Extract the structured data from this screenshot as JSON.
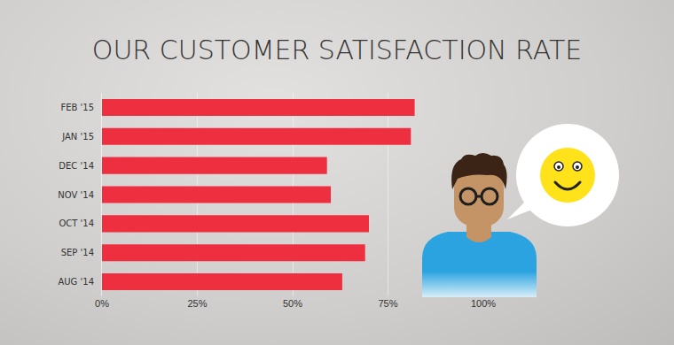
{
  "chart_data": {
    "type": "bar",
    "orientation": "horizontal",
    "title": "OUR CUSTOMER SATISFACTION RATE",
    "categories": [
      "AUG '14",
      "SEP '14",
      "OCT '14",
      "NOV '14",
      "DEC '14",
      "JAN '15",
      "FEB '15"
    ],
    "values": [
      63,
      69,
      70,
      60,
      59,
      81,
      82
    ],
    "color": "#ee2f40",
    "xlim": [
      0,
      100
    ],
    "xticks": [
      {
        "value": 0,
        "label": "0%"
      },
      {
        "value": 25,
        "label": "25%"
      },
      {
        "value": 50,
        "label": "50%"
      },
      {
        "value": 75,
        "label": "75%"
      },
      {
        "value": 100,
        "label": "100%"
      }
    ],
    "grid": true
  }
}
